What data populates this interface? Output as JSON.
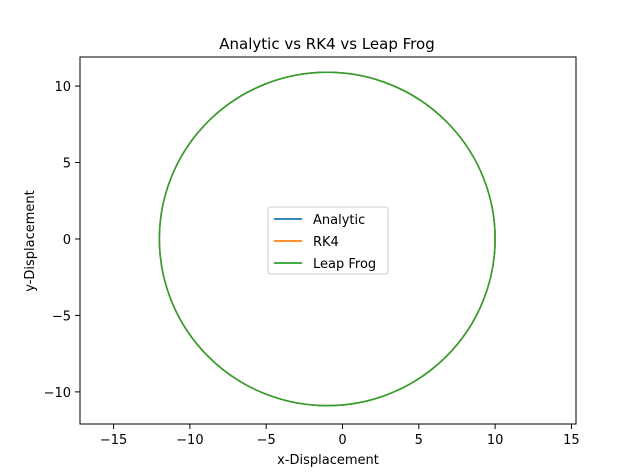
{
  "chart_data": {
    "type": "line",
    "title": "Analytic vs RK4 vs Leap Frog",
    "xlabel": "x-Displacement",
    "ylabel": "y-Displacement",
    "xlim": [
      -17.2,
      15.3
    ],
    "ylim": [
      -12.1,
      11.9
    ],
    "x_ticks": [
      -15,
      -10,
      -5,
      0,
      5,
      10,
      15
    ],
    "y_ticks": [
      -10,
      -5,
      0,
      5,
      10
    ],
    "x_tick_labels": [
      "−15",
      "−10",
      "−5",
      "0",
      "5",
      "10",
      "15"
    ],
    "y_tick_labels": [
      "−10",
      "−5",
      "0",
      "5",
      "10"
    ],
    "grid": false,
    "legend_position": "center",
    "series": [
      {
        "name": "Analytic",
        "color": "#1f77b4",
        "shape": "ellipse",
        "center": [
          -1,
          0
        ],
        "radius_x": 11,
        "radius_y": 10.9
      },
      {
        "name": "RK4",
        "color": "#ff7f0e",
        "shape": "ellipse",
        "center": [
          -1,
          0
        ],
        "radius_x": 11,
        "radius_y": 10.9
      },
      {
        "name": "Leap Frog",
        "color": "#2ca02c",
        "shape": "ellipse",
        "center": [
          -1,
          0
        ],
        "radius_x": 11,
        "radius_y": 10.9
      }
    ]
  }
}
